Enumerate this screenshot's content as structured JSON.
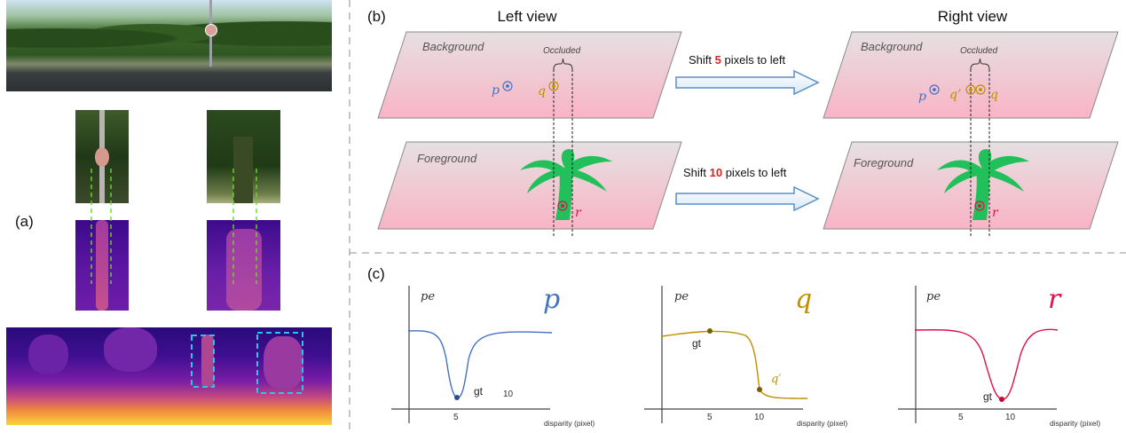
{
  "panel_a": {
    "label": "(a)"
  },
  "panel_b": {
    "label": "(b)",
    "left_title": "Left view",
    "right_title": "Right view",
    "background_label": "Background",
    "foreground_label": "Foreground",
    "occluded_label": "Occluded",
    "point_p": "p",
    "point_q": "q",
    "point_q_prime": "q’",
    "point_r": "r",
    "shift_bg": {
      "pre": "Shift ",
      "num": "5",
      "post": " pixels to left"
    },
    "shift_fg": {
      "pre": "Shift ",
      "num": "10",
      "post": " pixels to left"
    }
  },
  "panel_c": {
    "label": "(c)",
    "ylabel": "pe",
    "xlabel": "disparity (pixel)",
    "gt_label": "gt",
    "qprime_label": "q′",
    "plots": [
      {
        "var": "p",
        "color": "#4472c4",
        "ticks": [
          "5",
          "10"
        ]
      },
      {
        "var": "q",
        "color": "#bf8f00",
        "ticks": [
          "5",
          "10"
        ]
      },
      {
        "var": "r",
        "color": "#e0104a",
        "ticks": [
          "5",
          "10"
        ]
      }
    ]
  },
  "colors": {
    "p": "#4472c4",
    "q": "#bf8f00",
    "r": "#e0104a",
    "palm": "#22c05a",
    "dash_guides": "#66dd22",
    "box": "#2ec4e6"
  }
}
